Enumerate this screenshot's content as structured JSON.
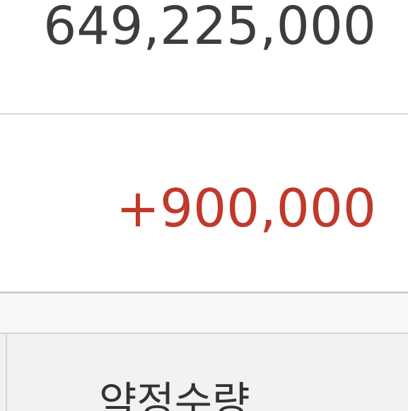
{
  "total": {
    "value": "649,225,000"
  },
  "change": {
    "value": "+900,000",
    "color": "#c0392b"
  },
  "table_header": {
    "label": "약정수량"
  }
}
